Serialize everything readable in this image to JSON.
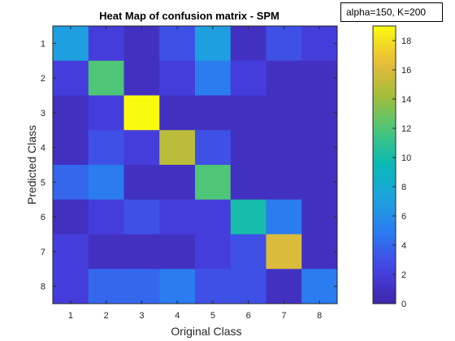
{
  "chart_data": {
    "type": "heatmap",
    "title": "Heat Map of confusion matrix - SPM",
    "annotation": "alpha=150, K=200",
    "xlabel": "Original Class",
    "ylabel": "Predicted Class",
    "x_categories": [
      "1",
      "2",
      "3",
      "4",
      "5",
      "6",
      "7",
      "8"
    ],
    "y_categories": [
      "1",
      "2",
      "3",
      "4",
      "5",
      "6",
      "7",
      "8"
    ],
    "matrix": [
      [
        7,
        2,
        1,
        3,
        7,
        1,
        3,
        2
      ],
      [
        2,
        12,
        1,
        2,
        5,
        2,
        1,
        1
      ],
      [
        1,
        2,
        19,
        1,
        1,
        1,
        1,
        1
      ],
      [
        1,
        3,
        2,
        15,
        3,
        1,
        1,
        1
      ],
      [
        4,
        5,
        1,
        1,
        12,
        1,
        1,
        1
      ],
      [
        1,
        2,
        3,
        2,
        2,
        10,
        5,
        1
      ],
      [
        2,
        1,
        1,
        1,
        2,
        3,
        16,
        1
      ],
      [
        2,
        4,
        4,
        5,
        3,
        3,
        1,
        5
      ]
    ],
    "colorbar": {
      "ticks": [
        "0",
        "2",
        "4",
        "6",
        "8",
        "10",
        "12",
        "14",
        "16",
        "18"
      ],
      "range": [
        0,
        19
      ],
      "colormap": "parula"
    },
    "grid": false
  }
}
